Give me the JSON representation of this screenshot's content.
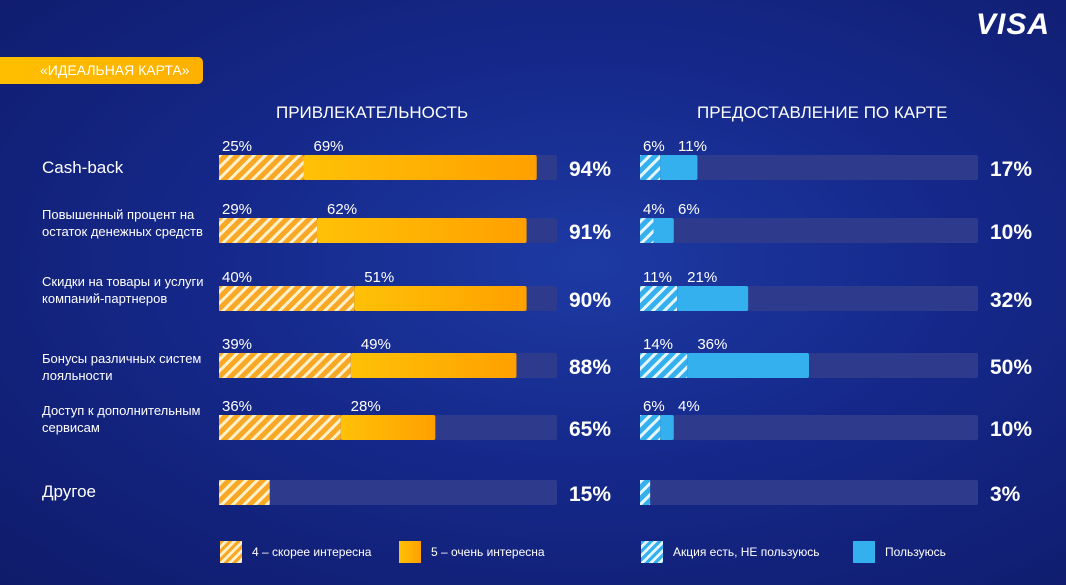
{
  "logo": "VISA",
  "badge": "«ИДЕАЛЬНАЯ КАРТА»",
  "sections": {
    "left_title": "ПРИВЛЕКАТЕЛЬНОСТЬ",
    "right_title": "ПРЕДОСТАВЛЕНИЕ ПО КАРТЕ"
  },
  "legend": {
    "left_hatched": "4 – скорее интересна",
    "left_solid": "5 – очень интересна",
    "right_hatched": "Акция есть, НЕ пользуюсь",
    "right_solid": "Пользуюсь"
  },
  "colors": {
    "orange": "#ffb300",
    "blue": "#35b0ee",
    "track": "#2e3b8c"
  },
  "chart_data": [
    {
      "type": "bar",
      "orientation": "horizontal",
      "stacked": true,
      "title": "ПРИВЛЕКАТЕЛЬНОСТЬ",
      "categories": [
        "Cash-back",
        "Повышенный процент на остаток денежных средств",
        "Скидки на товары и услуги компаний-партнеров",
        "Бонусы различных систем лояльности",
        "Доступ к дополнительным сервисам",
        "Другое"
      ],
      "series": [
        {
          "name": "4 – скорее интересна",
          "values": [
            25,
            29,
            40,
            39,
            36,
            15
          ]
        },
        {
          "name": "5 – очень интересна",
          "values": [
            69,
            62,
            51,
            49,
            28,
            0
          ]
        }
      ],
      "segment_labels": [
        [
          "25%",
          "69%"
        ],
        [
          "29%",
          "62%"
        ],
        [
          "40%",
          "51%"
        ],
        [
          "39%",
          "49%"
        ],
        [
          "36%",
          "28%"
        ],
        [
          "",
          ""
        ]
      ],
      "totals": [
        "94%",
        "91%",
        "90%",
        "88%",
        "65%",
        "15%"
      ],
      "xlim": [
        0,
        100
      ]
    },
    {
      "type": "bar",
      "orientation": "horizontal",
      "stacked": true,
      "title": "ПРЕДОСТАВЛЕНИЕ ПО КАРТЕ",
      "categories": [
        "Cash-back",
        "Повышенный процент на остаток денежных средств",
        "Скидки на товары и услуги компаний-партнеров",
        "Бонусы различных систем лояльности",
        "Доступ к дополнительным сервисам",
        "Другое"
      ],
      "series": [
        {
          "name": "Акция есть, НЕ пользуюсь",
          "values": [
            6,
            4,
            11,
            14,
            6,
            3
          ]
        },
        {
          "name": "Пользуюсь",
          "values": [
            11,
            6,
            21,
            36,
            4,
            0
          ]
        }
      ],
      "segment_labels": [
        [
          "6%",
          "11%"
        ],
        [
          "4%",
          "6%"
        ],
        [
          "11%",
          "21%"
        ],
        [
          "14%",
          "36%"
        ],
        [
          "6%",
          "4%"
        ],
        [
          "",
          ""
        ]
      ],
      "totals": [
        "17%",
        "10%",
        "32%",
        "50%",
        "10%",
        "3%"
      ],
      "xlim": [
        0,
        100
      ]
    }
  ]
}
